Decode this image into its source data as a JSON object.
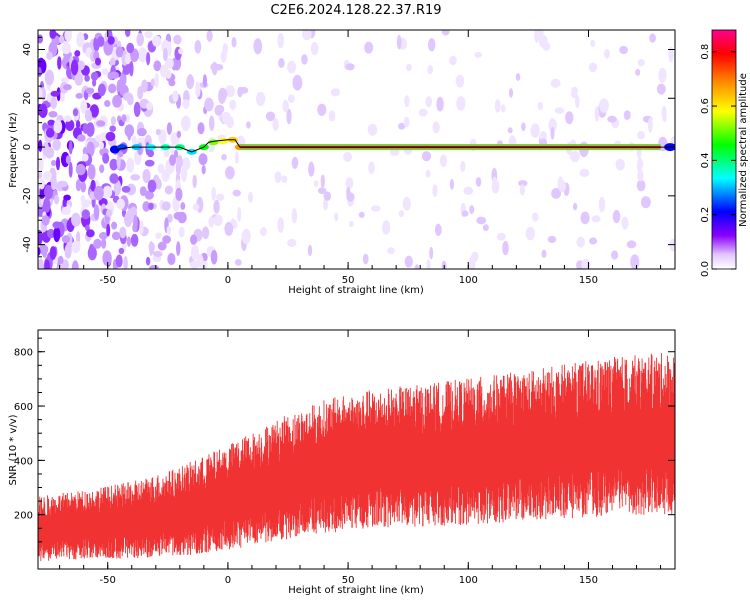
{
  "title": "C2E6.2024.128.22.37.R19",
  "chart_data": [
    {
      "type": "heatmap",
      "title": "C2E6.2024.128.22.37.R19",
      "xlabel": "Height of straight line (km)",
      "ylabel": "Frequency (Hz)",
      "xlim": [
        -79,
        186
      ],
      "ylim": [
        -50,
        48
      ],
      "xticks": [
        -50,
        0,
        50,
        100,
        150
      ],
      "yticks": [
        -40,
        -20,
        0,
        20,
        40
      ],
      "colorbar": {
        "label": "Normalized spectral amplitude",
        "range": [
          0,
          0.88
        ],
        "ticks": [
          0.0,
          0.2,
          0.4,
          0.6,
          0.8
        ],
        "colormap": [
          "#ffffff",
          "#7a00ff",
          "#0000ff",
          "#00ffff",
          "#00ff00",
          "#ffff00",
          "#ff9900",
          "#ff0000",
          "#ff00aa"
        ]
      },
      "trace": {
        "color": "#000000",
        "points": [
          [
            -47,
            -1
          ],
          [
            -40,
            0
          ],
          [
            -30,
            0
          ],
          [
            -20,
            0
          ],
          [
            -15,
            -2
          ],
          [
            -10,
            0
          ],
          [
            -8,
            2
          ],
          [
            -5,
            2.5
          ],
          [
            0,
            3
          ],
          [
            3,
            3
          ],
          [
            5,
            0
          ],
          [
            30,
            0
          ],
          [
            100,
            0
          ],
          [
            150,
            0
          ],
          [
            186,
            0
          ]
        ]
      }
    },
    {
      "type": "line",
      "xlabel": "Height of straight line (km)",
      "ylabel": "SNR (10 * v/v)",
      "xlim": [
        -79,
        186
      ],
      "ylim": [
        0,
        880
      ],
      "xticks": [
        -50,
        0,
        50,
        100,
        150
      ],
      "yticks": [
        200,
        400,
        600,
        800
      ],
      "series": [
        {
          "color": "#f03232",
          "envelope": {
            "x": [
              -79,
              -60,
              -40,
              -20,
              0,
              20,
              40,
              60,
              80,
              100,
              120,
              140,
              160,
              186
            ],
            "mean": [
              140,
              155,
              170,
              200,
              250,
              310,
              360,
              390,
              400,
              415,
              430,
              450,
              470,
              480
            ],
            "spread": [
              80,
              85,
              95,
              110,
              130,
              150,
              165,
              170,
              175,
              180,
              185,
              190,
              195,
              200
            ]
          }
        }
      ]
    }
  ]
}
